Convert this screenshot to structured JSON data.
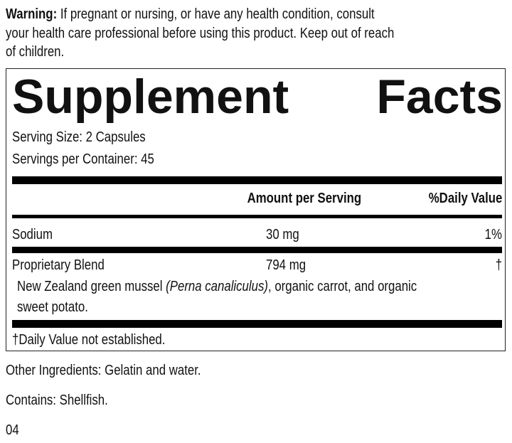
{
  "warning": {
    "label": "Warning:",
    "lines": [
      "If pregnant or nursing, or have any health condition, consult",
      "your health care professional before using this product. Keep out of reach",
      "of children."
    ]
  },
  "facts": {
    "title_words": [
      "Supplement",
      "Facts"
    ],
    "serving_size": "Serving Size: 2 Capsules",
    "servings_per_container": "Servings per Container: 45",
    "header": {
      "amount": "Amount per Serving",
      "dv": "%Daily Value"
    },
    "rows": [
      {
        "name": "Sodium",
        "amount": "30 mg",
        "dv": "1%"
      },
      {
        "name": "Proprietary Blend",
        "amount": "794 mg",
        "dv": "†"
      }
    ],
    "blend": {
      "prefix": "New Zealand green mussel ",
      "latin": "(Perna canaliculus)",
      "suffix": ", organic carrot, and organic",
      "line2": "sweet potato."
    },
    "footnote": "†Daily Value not established."
  },
  "other_ingredients": "Other Ingredients: Gelatin and water.",
  "contains": "Contains: Shellfish.",
  "code": "04"
}
